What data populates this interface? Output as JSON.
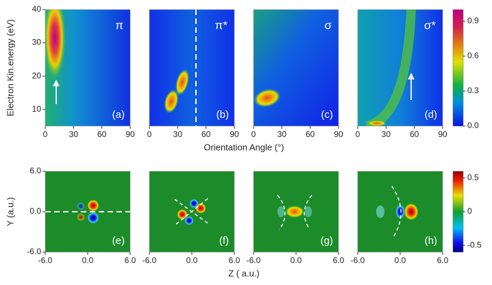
{
  "chart_data": [
    {
      "type": "heatmap",
      "label": "(a)",
      "symbol": "π",
      "xlim": [
        0,
        90
      ],
      "xticks": [
        0,
        30,
        60,
        90
      ],
      "ylim": [
        5,
        40
      ],
      "yticks": [
        10,
        20,
        30,
        40
      ],
      "ylabel": "Electron Kin.energy (eV)",
      "xlabel": "Orientation Angle (°)",
      "colorbar": {
        "lim": [
          0,
          1
        ],
        "ticks": [
          {
            "value": 0,
            "label": "0.0"
          },
          0.3,
          0.6,
          0.9
        ]
      }
    },
    {
      "type": "heatmap",
      "label": "(b)",
      "symbol": "π*",
      "xlim": [
        0,
        90
      ],
      "xticks": [
        0,
        30,
        60,
        90
      ]
    },
    {
      "type": "heatmap",
      "label": "(c)",
      "symbol": "σ",
      "xlim": [
        0,
        90
      ],
      "xticks": [
        0,
        30,
        60,
        90
      ]
    },
    {
      "type": "heatmap",
      "label": "(d)",
      "symbol": "σ*",
      "xlim": [
        0,
        90
      ],
      "xticks": [
        0,
        30,
        60,
        90
      ]
    },
    {
      "type": "heatmap",
      "label": "(e)",
      "xlim": [
        -6,
        6
      ],
      "xticks": [
        {
          "value": -6,
          "label": "-6.0"
        },
        {
          "value": 0,
          "label": "0.0"
        },
        {
          "value": 6,
          "label": "6.0"
        }
      ],
      "ylim": [
        -6,
        6
      ],
      "yticks": [
        {
          "value": -6,
          "label": "-6.0"
        },
        {
          "value": 0,
          "label": "0.0"
        },
        {
          "value": 6,
          "label": "6.0"
        }
      ],
      "ylabel": "Y (a.u.)",
      "xlabel": "Z ( a.u.)",
      "colorbar": {
        "lim": [
          -0.6,
          0.6
        ],
        "ticks": [
          0.5,
          0,
          -0.5
        ]
      }
    },
    {
      "type": "heatmap",
      "label": "(f)",
      "xlim": [
        -6,
        6
      ],
      "xticks": [
        {
          "value": -6,
          "label": "-6.0"
        },
        {
          "value": 0,
          "label": "0.0"
        },
        {
          "value": 6,
          "label": "6.0"
        }
      ]
    },
    {
      "type": "heatmap",
      "label": "(g)",
      "xlim": [
        -6,
        6
      ],
      "xticks": [
        {
          "value": -6,
          "label": "-6.0"
        },
        {
          "value": 0,
          "label": "0.0"
        },
        {
          "value": 6,
          "label": "6.0"
        }
      ]
    },
    {
      "type": "heatmap",
      "label": "(h)",
      "xlim": [
        -6,
        6
      ],
      "xticks": [
        {
          "value": -6,
          "label": "-6.0"
        },
        {
          "value": 0,
          "label": "0.0"
        },
        {
          "value": 6,
          "label": "6.0"
        }
      ]
    }
  ]
}
